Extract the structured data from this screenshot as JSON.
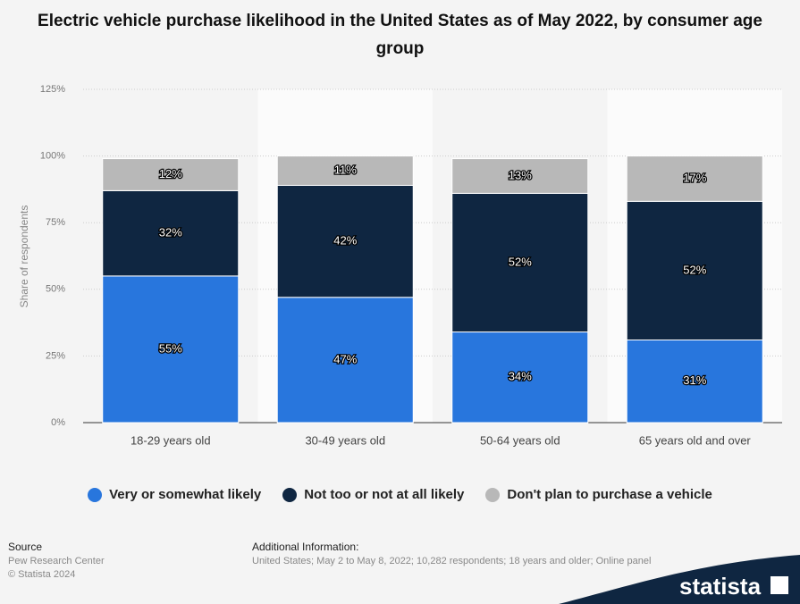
{
  "chart_data": {
    "type": "stacked-bar",
    "title": "Electric vehicle purchase likelihood in the United States as of May 2022, by consumer age group",
    "y_label": "Share of respondents",
    "categories": [
      "18-29 years old",
      "30-49 years old",
      "50-64 years old",
      "65 years old and over"
    ],
    "series": [
      {
        "name": "Very or somewhat likely",
        "color": "#2876dd",
        "values": [
          55,
          47,
          34,
          31
        ],
        "value_labels": [
          "55%",
          "47%",
          "34%",
          "31%"
        ]
      },
      {
        "name": "Not too or not at all likely",
        "color": "#0f2641",
        "values": [
          32,
          42,
          52,
          52
        ],
        "value_labels": [
          "32%",
          "42%",
          "52%",
          "52%"
        ]
      },
      {
        "name": "Don't plan to purchase a vehicle",
        "color": "#b8b8b8",
        "values": [
          12,
          11,
          13,
          17
        ],
        "value_labels": [
          "12%",
          "11%",
          "13%",
          "17%"
        ]
      }
    ],
    "ylim": [
      0,
      125
    ],
    "yticks": [
      {
        "value": 0,
        "label": "0%"
      },
      {
        "value": 25,
        "label": "25%"
      },
      {
        "value": 50,
        "label": "50%"
      },
      {
        "value": 75,
        "label": "75%"
      },
      {
        "value": 100,
        "label": "100%"
      },
      {
        "value": 125,
        "label": "125%"
      }
    ],
    "grid": true
  },
  "footer": {
    "source_title": "Source",
    "source": "Pew Research Center",
    "copyright": "© Statista 2024",
    "info_title": "Additional Information:",
    "info": "United States; May 2 to May 8, 2022; 10,282 respondents; 18 years and older; Online panel",
    "logo": "statista"
  }
}
